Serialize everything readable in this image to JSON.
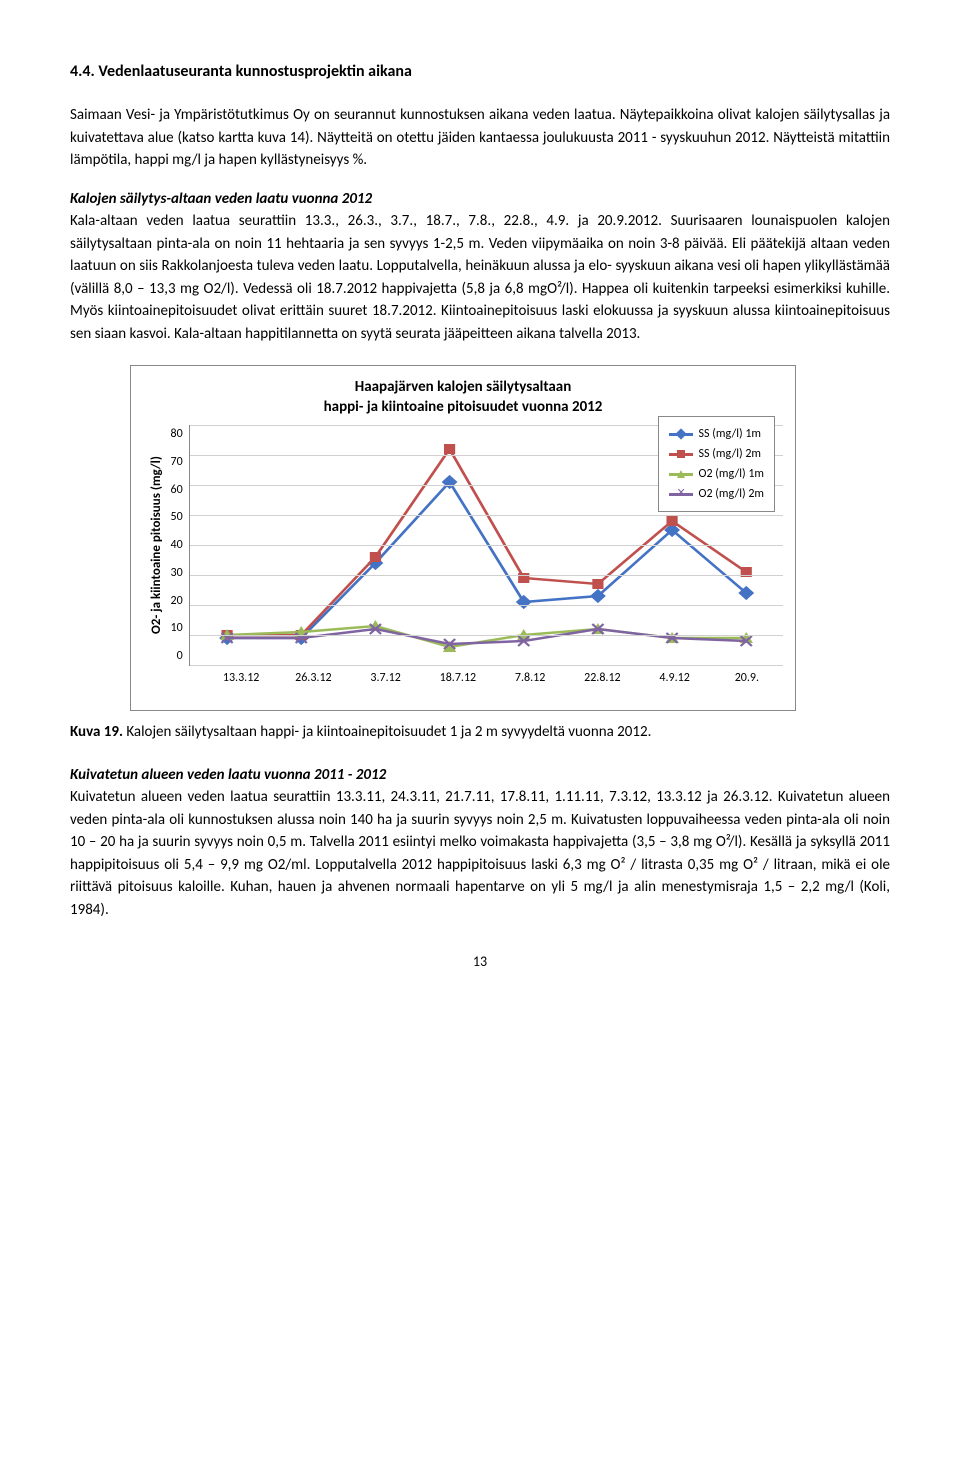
{
  "section_number": "4.4.",
  "section_title": "Vedenlaatuseuranta kunnostusprojektin aikana",
  "para1": "Saimaan Vesi- ja Ympäristötutkimus Oy on seurannut kunnostuksen aikana veden laatua. Näytepaikkoina olivat kalojen säilytysallas ja kuivatettava alue (katso kartta kuva 14). Näytteitä on otettu jäiden kantaessa joulukuusta 2011 - syyskuuhun 2012. Näytteistä mitattiin lämpötila, happi mg/l ja hapen kyllästyneisyys %.",
  "subheading1": "Kalojen säilytys-altaan veden laatu vuonna 2012",
  "para2": "Kala-altaan veden laatua seurattiin 13.3., 26.3., 3.7., 18.7., 7.8., 22.8., 4.9. ja 20.9.2012. Suurisaaren lounaispuolen kalojen säilytysaltaan pinta-ala on noin 11 hehtaaria ja sen syvyys 1-2,5 m. Veden viipymäaika on noin 3-8 päivää. Eli päätekijä altaan veden laatuun on siis Rakkolanjoesta tuleva veden laatu. Lopputalvella, heinäkuun alussa ja elo- syyskuun aikana vesi oli hapen ylikyllästämää (välillä 8,0 – 13,3 mg O2/l). Vedessä oli 18.7.2012 happivajetta (5,8 ja 6,8 mgO²/l). Happea oli kuitenkin tarpeeksi esimerkiksi kuhille. Myös kiintoainepitoisuudet olivat erittäin suuret 18.7.2012. Kiintoainepitoisuus laski elokuussa ja syyskuun alussa kiintoainepitoisuus sen siaan kasvoi. Kala-altaan happitilannetta on syytä seurata jääpeitteen aikana talvella 2013.",
  "chart": {
    "title_line1": "Haapajärven kalojen säilytysaltaan",
    "title_line2": "happi- ja kiintoaine pitoisuudet vuonna 2012",
    "ylabel": "O2- ja kiintoaine pitoisuus (mg/l)",
    "ylim": [
      0,
      80
    ],
    "ytick_step": 10,
    "yticks": [
      "80",
      "70",
      "60",
      "50",
      "40",
      "30",
      "20",
      "10",
      "0"
    ],
    "xticks": [
      "13.3.12",
      "26.3.12",
      "3.7.12",
      "18.7.12",
      "7.8.12",
      "22.8.12",
      "4.9.12",
      "20.9."
    ],
    "series": {
      "ss1m": {
        "label": "SS (mg/l) 1m",
        "color": "#4472c4",
        "marker": "diamond",
        "values": [
          9,
          9,
          34,
          61,
          21,
          23,
          45,
          24
        ]
      },
      "ss2m": {
        "label": "SS (mg/l) 2m",
        "color": "#c0504d",
        "marker": "square",
        "values": [
          10,
          10,
          36,
          72,
          29,
          27,
          48,
          31
        ]
      },
      "o21m": {
        "label": "O2 (mg/l) 1m",
        "color": "#9bbb59",
        "marker": "triangle",
        "values": [
          10,
          11,
          13,
          6,
          10,
          12,
          9,
          9
        ]
      },
      "o22m": {
        "label": "O2 (mg/l) 2m",
        "color": "#8064a2",
        "marker": "x",
        "values": [
          9,
          9,
          12,
          7,
          8,
          12,
          9,
          8
        ]
      }
    },
    "background_color": "#ffffff",
    "grid_color": "#d0d0d0"
  },
  "caption_label": "Kuva 19.",
  "caption_text": "Kalojen säilytysaltaan happi- ja kiintoainepitoisuudet 1 ja 2 m syvyydeltä vuonna 2012.",
  "subheading2": "Kuivatetun alueen veden laatu vuonna 2011 - 2012",
  "para3": "Kuivatetun alueen veden laatua seurattiin 13.3.11, 24.3.11, 21.7.11, 17.8.11, 1.11.11, 7.3.12, 13.3.12 ja 26.3.12. Kuivatetun alueen veden pinta-ala oli kunnostuksen alussa noin 140 ha ja suurin syvyys noin 2,5 m. Kuivatusten loppuvaiheessa veden pinta-ala oli noin 10 – 20 ha ja suurin syvyys noin 0,5 m. Talvella 2011 esiintyi melko voimakasta happivajetta (3,5 – 3,8 mg O²/l). Kesällä ja syksyllä 2011 happipitoisuus oli 5,4 – 9,9 mg O2/ml. Lopputalvella 2012 happipitoisuus laski 6,3 mg O² / litrasta 0,35 mg O² / litraan, mikä ei ole riittävä pitoisuus kaloille. Kuhan, hauen ja ahvenen normaali hapentarve on yli 5 mg/l ja alin menestymisraja 1,5 – 2,2 mg/l (Koli, 1984).",
  "page_number": "13"
}
